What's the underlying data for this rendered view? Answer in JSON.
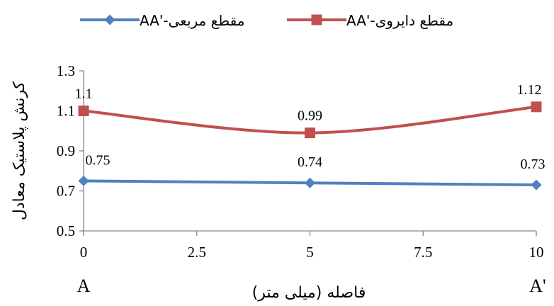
{
  "chart_data": {
    "type": "line",
    "x": [
      0,
      5,
      10
    ],
    "xticks": [
      "0",
      "2.5",
      "5",
      "7.5",
      "10"
    ],
    "xtick_values": [
      0,
      2.5,
      5,
      7.5,
      10
    ],
    "yticks": [
      "0.5",
      "0.7",
      "0.9",
      "1.1",
      "1.3"
    ],
    "ytick_values": [
      0.5,
      0.7,
      0.9,
      1.1,
      1.3
    ],
    "xlim": [
      0,
      10
    ],
    "ylim": [
      0.5,
      1.3
    ],
    "xlabel": "فاصله (میلی متر)",
    "ylabel": "کرنش پلاستیک معادل",
    "end_labels": {
      "left": "A",
      "right": "A'"
    },
    "grid": false,
    "legend_position": "top",
    "series": [
      {
        "name": "مقطع مربعی-'AA",
        "marker": "diamond",
        "color": "#4F81BD",
        "values": [
          0.75,
          0.74,
          0.73
        ],
        "labels": [
          "0.75",
          "0.74",
          "0.73"
        ]
      },
      {
        "name": "مقطع دایروی-'AA",
        "marker": "square",
        "color": "#C0504D",
        "values": [
          1.1,
          0.99,
          1.12
        ],
        "labels": [
          "1.1",
          "0.99",
          "1.12"
        ]
      }
    ]
  }
}
